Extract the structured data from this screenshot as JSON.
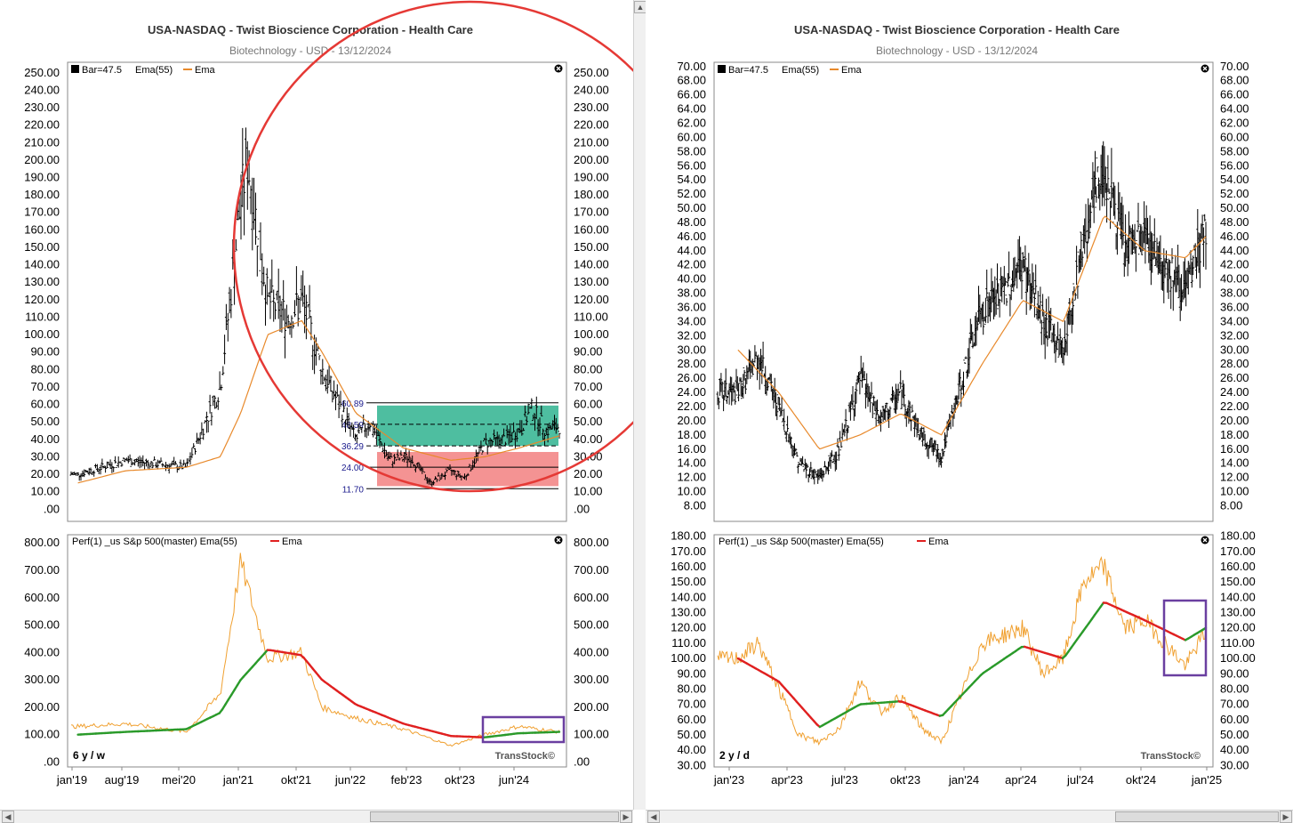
{
  "colors": {
    "price": "#000000",
    "ema_orange": "#e8892b",
    "perf_orange": "#f0a030",
    "ema_up": "#2a9a2a",
    "ema_down": "#e02020",
    "zone_green": "#2fb38f",
    "zone_red": "#f28080",
    "circle": "#e53935",
    "box": "#6a3fa0",
    "axis_text": "#000000",
    "fib_text": "#1a1a8c"
  },
  "left": {
    "title": "USA-NASDAQ - Twist Bioscience Corporation - Health Care",
    "subtitle": "Biotechnology - USD - 13/12/2024",
    "price_legend": {
      "bar": "Bar=47.5",
      "ema": "Ema(55)",
      "ema_label": "Ema"
    },
    "perf_legend": {
      "label": "Perf(1) _us S&p 500(master) Ema(55)",
      "ema_label": "Ema"
    },
    "period": "6 y / w",
    "watermark": "TransStock©",
    "price_ticks": [
      ".00",
      "10.00",
      "20.00",
      "30.00",
      "40.00",
      "50.00",
      "60.00",
      "70.00",
      "80.00",
      "90.00",
      "100.00",
      "110.00",
      "120.00",
      "130.00",
      "140.00",
      "150.00",
      "160.00",
      "170.00",
      "180.00",
      "190.00",
      "200.00",
      "210.00",
      "220.00",
      "230.00",
      "240.00",
      "250.00"
    ],
    "perf_ticks": [
      ".00",
      "100.00",
      "200.00",
      "300.00",
      "400.00",
      "500.00",
      "600.00",
      "700.00",
      "800.00"
    ],
    "x_ticks": [
      "jan'19",
      "aug'19",
      "mei'20",
      "jan'21",
      "okt'21",
      "jun'22",
      "feb'23",
      "okt'23",
      "jun'24"
    ],
    "fib_levels": [
      "60.89",
      "48.59",
      "36.29",
      "24.00",
      "11.70"
    ]
  },
  "right": {
    "title": "USA-NASDAQ - Twist Bioscience Corporation - Health Care",
    "subtitle": "Biotechnology - USD - 13/12/2024",
    "price_legend": {
      "bar": "Bar=47.5",
      "ema": "Ema(55)",
      "ema_label": "Ema"
    },
    "perf_legend": {
      "label": "Perf(1) _us S&p 500(master) Ema(55)",
      "ema_label": "Ema"
    },
    "period": "2 y / d",
    "watermark": "TransStock©",
    "price_ticks": [
      "8.00",
      "10.00",
      "12.00",
      "14.00",
      "16.00",
      "18.00",
      "20.00",
      "22.00",
      "24.00",
      "26.00",
      "28.00",
      "30.00",
      "32.00",
      "34.00",
      "36.00",
      "38.00",
      "40.00",
      "42.00",
      "44.00",
      "46.00",
      "48.00",
      "50.00",
      "52.00",
      "54.00",
      "56.00",
      "58.00",
      "60.00",
      "62.00",
      "64.00",
      "66.00",
      "68.00",
      "70.00"
    ],
    "perf_ticks": [
      "30.00",
      "40.00",
      "50.00",
      "60.00",
      "70.00",
      "80.00",
      "90.00",
      "100.00",
      "110.00",
      "120.00",
      "130.00",
      "140.00",
      "150.00",
      "160.00",
      "170.00",
      "180.00"
    ],
    "x_ticks": [
      "jan'23",
      "apr'23",
      "jul'23",
      "okt'23",
      "jan'24",
      "apr'24",
      "jul'24",
      "okt'24",
      "jan'25"
    ]
  },
  "chart_data": [
    {
      "type": "line",
      "title": "USA-NASDAQ - Twist Bioscience Corporation - Health Care",
      "subtitle": "Biotechnology - USD - 13/12/2024",
      "panel": "price, 6 y / w",
      "ylim": [
        0,
        250
      ],
      "series": [
        {
          "name": "Bar=47.5",
          "x": [
            "2019-01",
            "2019-08",
            "2020-05",
            "2020-10",
            "2021-01",
            "2021-02",
            "2021-05",
            "2021-08",
            "2021-10",
            "2022-01",
            "2022-06",
            "2022-08",
            "2022-11",
            "2023-02",
            "2023-05",
            "2023-08",
            "2023-10",
            "2024-01",
            "2024-04",
            "2024-06",
            "2024-08",
            "2024-10",
            "2024-12"
          ],
          "values": [
            20,
            28,
            24,
            70,
            175,
            200,
            120,
            110,
            120,
            80,
            40,
            50,
            28,
            30,
            15,
            22,
            18,
            38,
            40,
            45,
            58,
            45,
            47.5
          ]
        },
        {
          "name": "Ema",
          "x": [
            "2019-01",
            "2019-08",
            "2020-05",
            "2020-10",
            "2021-01",
            "2021-05",
            "2021-10",
            "2022-01",
            "2022-06",
            "2023-01",
            "2023-08",
            "2024-01",
            "2024-06",
            "2024-12"
          ],
          "values": [
            15,
            22,
            24,
            30,
            55,
            100,
            108,
            90,
            55,
            35,
            28,
            30,
            35,
            42
          ]
        }
      ],
      "annotations": {
        "fib_levels": [
          60.89,
          48.59,
          36.29,
          24.0,
          11.7
        ]
      }
    },
    {
      "type": "line",
      "panel": "Perf(1) _us S&p 500(master), 6 y / w",
      "ylim": [
        0,
        800
      ],
      "series": [
        {
          "name": "Perf(1) _us S&p 500(master)",
          "x": [
            "2019-01",
            "2019-08",
            "2020-05",
            "2020-10",
            "2021-01",
            "2021-05",
            "2021-10",
            "2022-01",
            "2022-06",
            "2023-01",
            "2023-08",
            "2024-01",
            "2024-06",
            "2024-12"
          ],
          "values": [
            130,
            140,
            110,
            250,
            730,
            380,
            400,
            200,
            160,
            120,
            60,
            100,
            130,
            110
          ]
        },
        {
          "name": "Ema",
          "x": [
            "2019-01",
            "2019-08",
            "2020-05",
            "2020-10",
            "2021-01",
            "2021-05",
            "2021-10",
            "2022-01",
            "2022-06",
            "2023-01",
            "2023-08",
            "2024-01",
            "2024-06",
            "2024-12"
          ],
          "values": [
            100,
            110,
            120,
            180,
            300,
            410,
            390,
            300,
            210,
            140,
            95,
            90,
            105,
            110
          ]
        }
      ]
    },
    {
      "type": "line",
      "panel": "price, 2 y / d",
      "ylim": [
        8,
        70
      ],
      "series": [
        {
          "name": "Bar=47.5",
          "x": [
            "2023-01",
            "2023-02",
            "2023-03",
            "2023-04",
            "2023-05",
            "2023-06",
            "2023-07",
            "2023-08",
            "2023-09",
            "2023-10",
            "2023-11",
            "2024-01",
            "2024-02",
            "2024-03",
            "2024-04",
            "2024-05",
            "2024-06",
            "2024-07",
            "2024-08",
            "2024-09",
            "2024-10",
            "2024-11",
            "2024-12"
          ],
          "values": [
            24,
            29,
            22,
            14,
            12,
            16,
            26,
            20,
            24,
            18,
            15,
            36,
            38,
            42,
            34,
            30,
            46,
            56,
            44,
            46,
            42,
            38,
            47.5
          ]
        },
        {
          "name": "Ema",
          "x": [
            "2023-01",
            "2023-03",
            "2023-05",
            "2023-07",
            "2023-09",
            "2023-11",
            "2024-01",
            "2024-03",
            "2024-05",
            "2024-07",
            "2024-09",
            "2024-11",
            "2024-12"
          ],
          "values": [
            30,
            24,
            16,
            18,
            21,
            18,
            28,
            37,
            34,
            49,
            44,
            43,
            46
          ]
        }
      ]
    },
    {
      "type": "line",
      "panel": "Perf(1) _us S&p 500(master), 2 y / d",
      "ylim": [
        30,
        180
      ],
      "series": [
        {
          "name": "Perf(1) _us S&p 500(master)",
          "x": [
            "2023-01",
            "2023-02",
            "2023-03",
            "2023-04",
            "2023-05",
            "2023-06",
            "2023-07",
            "2023-08",
            "2023-09",
            "2023-10",
            "2023-11",
            "2024-01",
            "2024-02",
            "2024-03",
            "2024-04",
            "2024-05",
            "2024-06",
            "2024-07",
            "2024-08",
            "2024-09",
            "2024-10",
            "2024-11",
            "2024-12"
          ],
          "values": [
            100,
            110,
            80,
            50,
            45,
            55,
            85,
            65,
            75,
            55,
            45,
            110,
            115,
            120,
            90,
            100,
            150,
            160,
            120,
            125,
            110,
            95,
            118
          ]
        },
        {
          "name": "Ema",
          "x": [
            "2023-01",
            "2023-03",
            "2023-05",
            "2023-07",
            "2023-09",
            "2023-11",
            "2024-01",
            "2024-03",
            "2024-05",
            "2024-07",
            "2024-09",
            "2024-11",
            "2024-12"
          ],
          "values": [
            100,
            85,
            55,
            70,
            72,
            62,
            90,
            108,
            100,
            137,
            125,
            112,
            120
          ]
        }
      ]
    }
  ]
}
